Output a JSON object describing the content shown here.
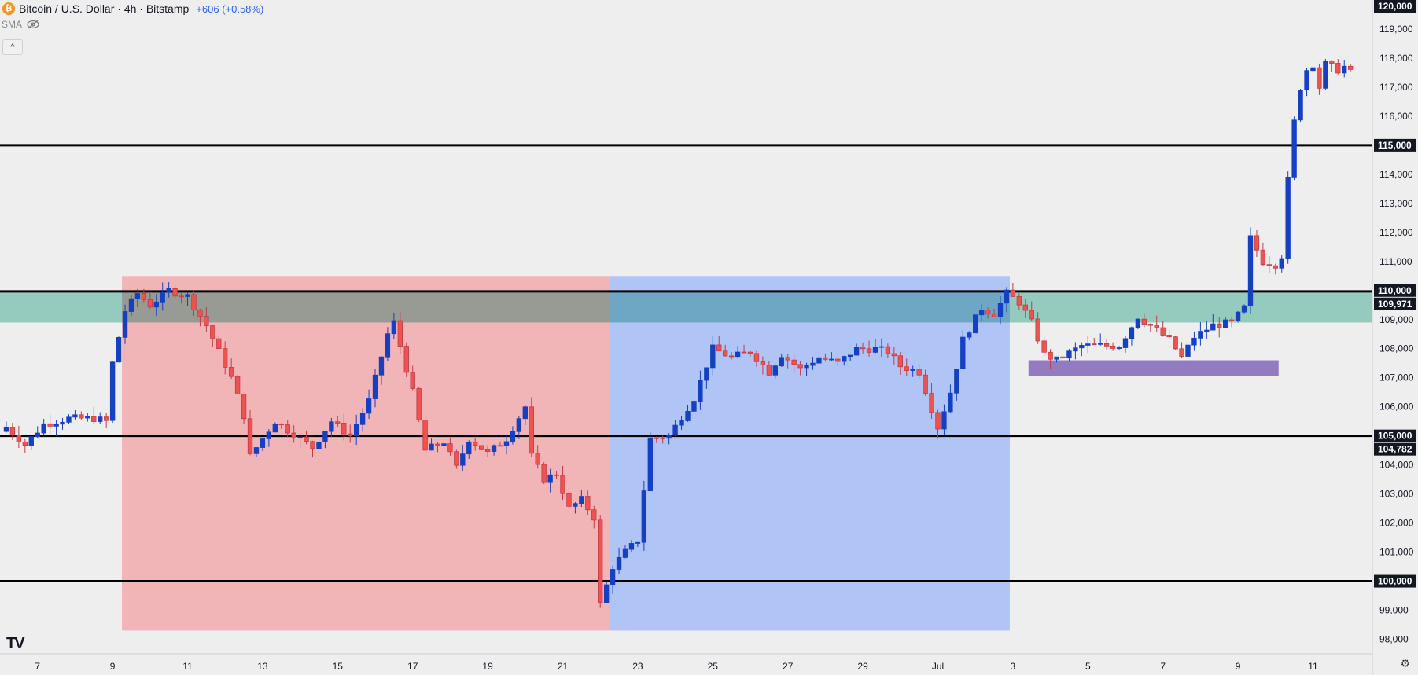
{
  "header": {
    "coin_glyph": "₿",
    "symbol": "Bitcoin / U.S. Dollar · 4h · Bitstamp",
    "change": "+606 (+0.58%)",
    "indicator": "SMA",
    "collapse": "^"
  },
  "branding": {
    "logo_text": "TV"
  },
  "colors": {
    "up": "#1540c4",
    "down": "#c43b45",
    "down_fill": "#ef5350",
    "level": "#000000",
    "zone_teal": "#8fd3c3",
    "zone_purple": "#9c84cf",
    "range_red": "#f1b5b8",
    "range_blue": "#b0c4f5"
  },
  "chart_data": {
    "type": "candlestick",
    "title": "Bitcoin / U.S. Dollar · 4h · Bitstamp",
    "ylim": [
      97500,
      120000
    ],
    "y_ticks": [
      98000,
      99000,
      100000,
      101000,
      102000,
      103000,
      104000,
      105000,
      106000,
      107000,
      108000,
      109000,
      110000,
      111000,
      112000,
      113000,
      114000,
      115000,
      116000,
      117000,
      118000,
      119000,
      120000
    ],
    "x_ticks": [
      {
        "bar": 5,
        "label": "7"
      },
      {
        "bar": 17,
        "label": "9"
      },
      {
        "bar": 29,
        "label": "11"
      },
      {
        "bar": 41,
        "label": "13"
      },
      {
        "bar": 53,
        "label": "15"
      },
      {
        "bar": 65,
        "label": "17"
      },
      {
        "bar": 77,
        "label": "19"
      },
      {
        "bar": 89,
        "label": "21"
      },
      {
        "bar": 101,
        "label": "23"
      },
      {
        "bar": 113,
        "label": "25"
      },
      {
        "bar": 125,
        "label": "27"
      },
      {
        "bar": 137,
        "label": "29"
      },
      {
        "bar": 149,
        "label": "Jul"
      },
      {
        "bar": 161,
        "label": "3"
      },
      {
        "bar": 173,
        "label": "5"
      },
      {
        "bar": 185,
        "label": "7"
      },
      {
        "bar": 197,
        "label": "9"
      },
      {
        "bar": 209,
        "label": "11"
      }
    ],
    "horizontal_levels": [
      115000,
      109971,
      105000,
      100000
    ],
    "price_labels": [
      {
        "value": 120000,
        "text": "120,000"
      },
      {
        "value": 115000,
        "text": "115,000"
      },
      {
        "value": 110000,
        "text": "110,000"
      },
      {
        "value": 109971,
        "text": "109,971"
      },
      {
        "value": 105000,
        "text": "105,000"
      },
      {
        "value": 104782,
        "text": "104,782"
      },
      {
        "value": 100000,
        "text": "100,000"
      }
    ],
    "zones": [
      {
        "kind": "teal",
        "y_low": 108900,
        "y_high": 109971,
        "bar_start": 0,
        "bar_end": 218
      },
      {
        "kind": "purple",
        "y_low": 107050,
        "y_high": 107600,
        "bar_start": 164,
        "bar_end": 203
      }
    ],
    "ranges": [
      {
        "kind": "red",
        "bar_start": 19,
        "bar_end": 97,
        "y_low": 98300,
        "y_high": 110500
      },
      {
        "kind": "blue",
        "bar_start": 97,
        "bar_end": 161,
        "y_low": 98300,
        "y_high": 110500
      }
    ],
    "close_path": [
      [
        0,
        105300
      ],
      [
        3,
        104700
      ],
      [
        6,
        105400
      ],
      [
        10,
        105600
      ],
      [
        14,
        105600
      ],
      [
        16,
        105500
      ],
      [
        17,
        107500
      ],
      [
        19,
        109300
      ],
      [
        21,
        109900
      ],
      [
        23,
        109500
      ],
      [
        26,
        110000
      ],
      [
        29,
        109800
      ],
      [
        32,
        108800
      ],
      [
        36,
        107000
      ],
      [
        38,
        105700
      ],
      [
        39,
        104300
      ],
      [
        43,
        105500
      ],
      [
        47,
        104900
      ],
      [
        49,
        104600
      ],
      [
        52,
        105500
      ],
      [
        55,
        105000
      ],
      [
        58,
        106200
      ],
      [
        61,
        108500
      ],
      [
        62,
        108900
      ],
      [
        64,
        107300
      ],
      [
        65,
        106500
      ],
      [
        67,
        104500
      ],
      [
        70,
        104800
      ],
      [
        72,
        103900
      ],
      [
        74,
        104900
      ],
      [
        77,
        104400
      ],
      [
        80,
        104900
      ],
      [
        83,
        106000
      ],
      [
        84,
        104300
      ],
      [
        86,
        103500
      ],
      [
        88,
        103700
      ],
      [
        90,
        102500
      ],
      [
        92,
        102800
      ],
      [
        94,
        102200
      ],
      [
        95,
        99200
      ],
      [
        97,
        100500
      ],
      [
        99,
        101000
      ],
      [
        101,
        101400
      ],
      [
        103,
        104900
      ],
      [
        106,
        105000
      ],
      [
        110,
        106300
      ],
      [
        113,
        108000
      ],
      [
        116,
        107700
      ],
      [
        119,
        107900
      ],
      [
        122,
        107200
      ],
      [
        124,
        107800
      ],
      [
        127,
        107300
      ],
      [
        130,
        107700
      ],
      [
        133,
        107500
      ],
      [
        136,
        108000
      ],
      [
        139,
        108000
      ],
      [
        141,
        107900
      ],
      [
        143,
        107400
      ],
      [
        146,
        107200
      ],
      [
        149,
        105300
      ],
      [
        151,
        106500
      ],
      [
        153,
        108300
      ],
      [
        156,
        109400
      ],
      [
        158,
        109200
      ],
      [
        160,
        109900
      ],
      [
        162,
        109600
      ],
      [
        164,
        108900
      ],
      [
        166,
        107800
      ],
      [
        168,
        107600
      ],
      [
        172,
        108100
      ],
      [
        178,
        108100
      ],
      [
        181,
        109100
      ],
      [
        183,
        108800
      ],
      [
        186,
        108300
      ],
      [
        188,
        107700
      ],
      [
        190,
        108400
      ],
      [
        193,
        108800
      ],
      [
        196,
        108900
      ],
      [
        198,
        109400
      ],
      [
        199,
        111800
      ],
      [
        201,
        111000
      ],
      [
        203,
        110900
      ],
      [
        204,
        111200
      ],
      [
        205,
        113800
      ],
      [
        206,
        115800
      ],
      [
        207,
        117000
      ],
      [
        208,
        117600
      ],
      [
        209,
        117800
      ],
      [
        210,
        117000
      ],
      [
        211,
        117800
      ],
      [
        213,
        117600
      ],
      [
        214,
        117700
      ],
      [
        215,
        117500
      ]
    ]
  }
}
